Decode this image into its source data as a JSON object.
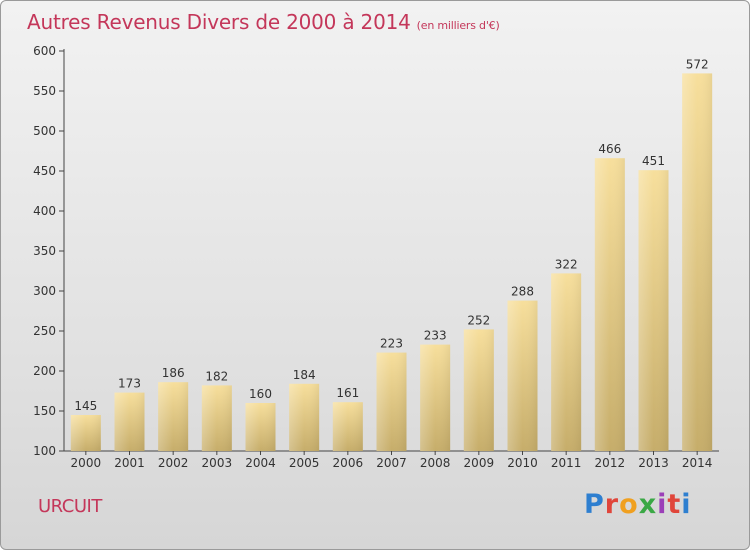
{
  "header": {
    "title": "Autres Revenus Divers de 2000 à 2014",
    "subtitle": "(en milliers d'€)"
  },
  "footer": {
    "commune": "URCUIT",
    "logo_text": "Proxiti",
    "logo_colors": [
      "#2e7fd0",
      "#e0453a",
      "#f0a020",
      "#3aa845",
      "#9b3fb8",
      "#e0453a",
      "#2e7fd0"
    ]
  },
  "chart_data": {
    "type": "bar",
    "title": "Autres Revenus Divers de 2000 à 2014",
    "subtitle": "(en milliers d'€)",
    "xlabel": "",
    "ylabel": "",
    "categories": [
      "2000",
      "2001",
      "2002",
      "2003",
      "2004",
      "2005",
      "2006",
      "2007",
      "2008",
      "2009",
      "2010",
      "2011",
      "2012",
      "2013",
      "2014"
    ],
    "values": [
      145,
      173,
      186,
      182,
      160,
      184,
      161,
      223,
      233,
      252,
      288,
      322,
      466,
      451,
      572
    ],
    "ylim": [
      100,
      600
    ],
    "yticks": [
      100,
      150,
      200,
      250,
      300,
      350,
      400,
      450,
      500,
      550,
      600
    ],
    "grid": false,
    "legend": "none",
    "bar_color_top": "#f7df9c",
    "bar_color_bottom": "#c6ad6a"
  }
}
